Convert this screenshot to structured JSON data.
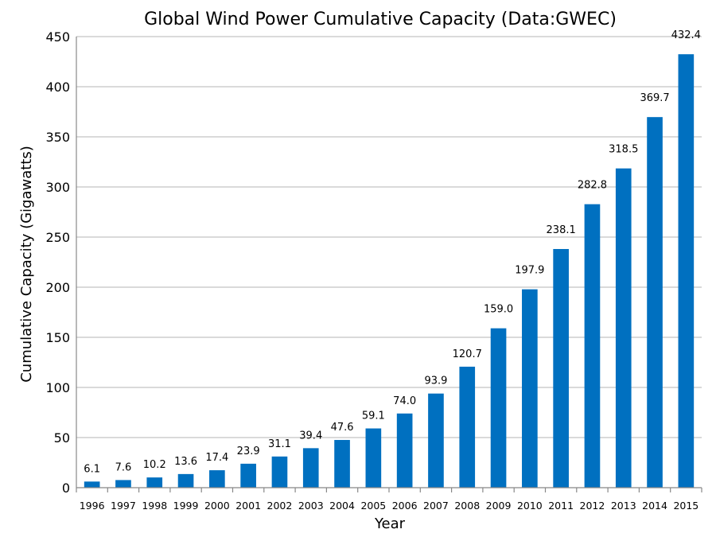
{
  "chart_data": {
    "type": "bar",
    "title": "Global Wind Power Cumulative Capacity (Data:GWEC)",
    "xlabel": "Year",
    "ylabel": "Cumulative Capacity (Gigawatts)",
    "ylim": [
      0,
      450
    ],
    "yticks": [
      0,
      50,
      100,
      150,
      200,
      250,
      300,
      350,
      400,
      450
    ],
    "grid": true,
    "bar_color": "#0070c0",
    "categories": [
      "1996",
      "1997",
      "1998",
      "1999",
      "2000",
      "2001",
      "2002",
      "2003",
      "2004",
      "2005",
      "2006",
      "2007",
      "2008",
      "2009",
      "2010",
      "2011",
      "2012",
      "2013",
      "2014",
      "2015"
    ],
    "values": [
      6.1,
      7.6,
      10.2,
      13.6,
      17.4,
      23.9,
      31.1,
      39.4,
      47.6,
      59.1,
      74.0,
      93.9,
      120.7,
      159.0,
      197.9,
      238.1,
      282.8,
      318.5,
      369.7,
      432.4
    ],
    "value_labels": [
      "6.1",
      "7.6",
      "10.2",
      "13.6",
      "17.4",
      "23.9",
      "31.1",
      "39.4",
      "47.6",
      "59.1",
      "74.0",
      "93.9",
      "120.7",
      "159.0",
      "197.9",
      "238.1",
      "282.8",
      "318.5",
      "369.7",
      "432.4"
    ]
  }
}
